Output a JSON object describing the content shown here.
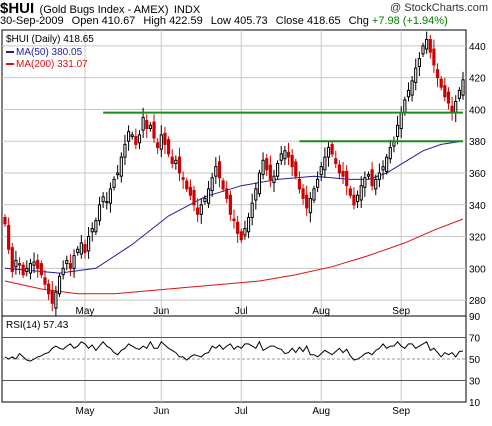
{
  "header": {
    "symbol": "$HUI",
    "description": "(Gold Bugs Index - AMEX)",
    "exchange": "INDX",
    "copyright": "@ StockCharts.com",
    "date": "30-Sep-2009",
    "open_label": "Open",
    "open": "410.67",
    "high_label": "High",
    "high": "422.59",
    "low_label": "Low",
    "low": "405.73",
    "close_label": "Close",
    "close": "418.65",
    "chg_label": "Chg",
    "chg": "+7.98 (+1.94%)"
  },
  "legend": {
    "price": "$HUI (Daily) 418.65",
    "ma50": "MA(50) 380.05",
    "ma200": "MA(200) 331.07",
    "rsi": "RSI(14) 57.43"
  },
  "colors": {
    "up": "#000000",
    "down": "#cc0000",
    "ma50": "#1f1f9e",
    "ma200": "#dd1111",
    "resistance": "#1a8a1a",
    "grid": "#c8c8c8"
  },
  "chart_data": [
    {
      "type": "candlestick",
      "title": "$HUI (Daily)",
      "ylim": [
        270,
        450
      ],
      "y_ticks": [
        280,
        300,
        320,
        340,
        360,
        380,
        400,
        420,
        440
      ],
      "x_month_labels": [
        {
          "label": "May",
          "index": 22
        },
        {
          "label": "Jun",
          "index": 43
        },
        {
          "label": "Jul",
          "index": 65
        },
        {
          "label": "Aug",
          "index": 87
        },
        {
          "label": "Sep",
          "index": 109
        }
      ],
      "close": [
        328,
        312,
        298,
        305,
        302,
        296,
        300,
        303,
        304,
        300,
        296,
        290,
        284,
        278,
        285,
        295,
        300,
        305,
        300,
        308,
        312,
        316,
        310,
        320,
        325,
        330,
        340,
        345,
        342,
        350,
        356,
        360,
        370,
        378,
        386,
        384,
        378,
        384,
        395,
        388,
        390,
        382,
        376,
        384,
        378,
        372,
        366,
        368,
        360,
        356,
        350,
        346,
        340,
        334,
        340,
        344,
        350,
        357,
        364,
        357,
        350,
        344,
        334,
        330,
        322,
        318,
        325,
        332,
        341,
        350,
        360,
        368,
        362,
        356,
        358,
        366,
        372,
        374,
        370,
        364,
        358,
        350,
        344,
        338,
        344,
        350,
        356,
        364,
        370,
        376,
        372,
        366,
        360,
        358,
        352,
        346,
        340,
        346,
        352,
        357,
        359,
        352,
        356,
        360,
        364,
        370,
        376,
        380,
        390,
        398,
        406,
        412,
        418,
        426,
        432,
        440,
        444,
        436,
        428,
        420,
        414,
        408,
        404,
        398,
        405,
        412,
        418.65
      ],
      "volatility_note": "OHLC candles drawn from closes; wicks approximated",
      "moving_averages": [
        {
          "name": "MA(50)",
          "value_last": 380.05,
          "values": [
            [
              0,
              300
            ],
            [
              15,
              297
            ],
            [
              25,
              300
            ],
            [
              35,
              315
            ],
            [
              45,
              333
            ],
            [
              55,
              345
            ],
            [
              65,
              352
            ],
            [
              75,
              356
            ],
            [
              85,
              358
            ],
            [
              95,
              356
            ],
            [
              100,
              356
            ],
            [
              105,
              360
            ],
            [
              110,
              367
            ],
            [
              115,
              374
            ],
            [
              120,
              378
            ],
            [
              126,
              380.05
            ]
          ]
        },
        {
          "name": "MA(200)",
          "value_last": 331.07,
          "values": [
            [
              0,
              292
            ],
            [
              10,
              287
            ],
            [
              20,
              284
            ],
            [
              30,
              284
            ],
            [
              40,
              286
            ],
            [
              50,
              288
            ],
            [
              60,
              290
            ],
            [
              70,
              292
            ],
            [
              80,
              296
            ],
            [
              90,
              301
            ],
            [
              100,
              308
            ],
            [
              110,
              316
            ],
            [
              118,
              324
            ],
            [
              126,
              331.07
            ]
          ]
        }
      ],
      "horizontal_lines": [
        {
          "y": 398,
          "x_start": 27,
          "x_end": 126
        },
        {
          "y": 380,
          "x_start": 81,
          "x_end": 126
        }
      ]
    },
    {
      "type": "line",
      "title": "RSI(14)",
      "ylim": [
        10,
        90
      ],
      "y_ticks": [
        10,
        30,
        50,
        70,
        90
      ],
      "reference_lines": [
        30,
        50,
        70
      ],
      "values": [
        52,
        50,
        52,
        50,
        55,
        52,
        49,
        48,
        50,
        52,
        53,
        55,
        56,
        60,
        62,
        60,
        59,
        62,
        64,
        60,
        62,
        66,
        64,
        60,
        63,
        58,
        62,
        66,
        62,
        60,
        56,
        54,
        58,
        60,
        64,
        62,
        60,
        59,
        62,
        60,
        66,
        60,
        60,
        66,
        63,
        60,
        58,
        56,
        52,
        52,
        49,
        52,
        54,
        53,
        52,
        55,
        56,
        62,
        60,
        63,
        59,
        62,
        64,
        59,
        62,
        60,
        64,
        64,
        62,
        60,
        66,
        58,
        60,
        62,
        62,
        60,
        59,
        55,
        56,
        60,
        56,
        61,
        57,
        62,
        54,
        54,
        52,
        55,
        58,
        56,
        54,
        57,
        60,
        56,
        59,
        53,
        49,
        50,
        52,
        55,
        56,
        54,
        58,
        60,
        64,
        60,
        62,
        62,
        66,
        62,
        60,
        64,
        64,
        60,
        62,
        64,
        66,
        58,
        60,
        56,
        52,
        56,
        54,
        56,
        52,
        57,
        57.43
      ]
    }
  ]
}
